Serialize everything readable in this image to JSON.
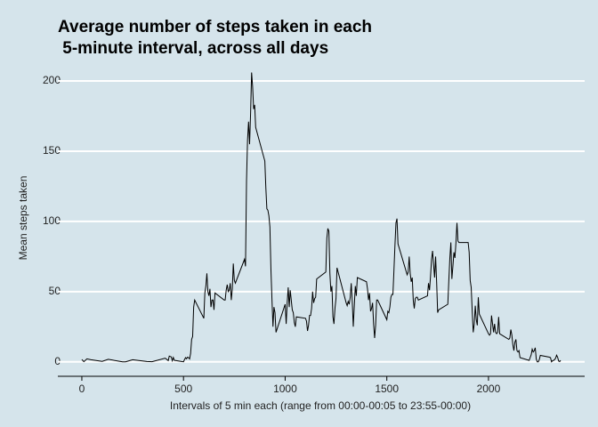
{
  "chart_data": {
    "type": "line",
    "title": [
      "Average number of steps taken in each",
      " 5-minute interval, across all days"
    ],
    "x_label": "Intervals of 5 min each (range from 00:00-00:05 to 23:55-00:00)",
    "y_label": "Mean steps taken",
    "xlim": [
      -118,
      2473
    ],
    "ylim": [
      -10.3,
      216.5
    ],
    "xticks": [
      0,
      500,
      1000,
      1500,
      2000
    ],
    "yticks": [
      0,
      50,
      100,
      150,
      200
    ],
    "grid": true,
    "color": "#000000",
    "x": [
      0,
      10,
      25,
      45,
      100,
      130,
      200,
      215,
      250,
      320,
      345,
      410,
      425,
      430,
      440,
      445,
      450,
      455,
      500,
      505,
      510,
      515,
      520,
      525,
      530,
      535,
      540,
      545,
      550,
      555,
      600,
      605,
      610,
      615,
      620,
      625,
      630,
      635,
      640,
      645,
      650,
      655,
      700,
      705,
      710,
      715,
      720,
      725,
      730,
      735,
      740,
      745,
      750,
      755,
      800,
      805,
      810,
      815,
      820,
      825,
      830,
      835,
      840,
      845,
      850,
      855,
      900,
      905,
      910,
      915,
      920,
      925,
      930,
      935,
      940,
      945,
      950,
      955,
      1000,
      1005,
      1010,
      1015,
      1020,
      1025,
      1030,
      1035,
      1040,
      1045,
      1050,
      1055,
      1100,
      1105,
      1110,
      1115,
      1120,
      1125,
      1130,
      1135,
      1140,
      1145,
      1150,
      1155,
      1200,
      1205,
      1210,
      1215,
      1220,
      1225,
      1230,
      1235,
      1240,
      1245,
      1250,
      1255,
      1300,
      1305,
      1310,
      1315,
      1320,
      1325,
      1330,
      1335,
      1340,
      1345,
      1350,
      1355,
      1400,
      1405,
      1410,
      1415,
      1420,
      1425,
      1430,
      1435,
      1440,
      1445,
      1450,
      1455,
      1500,
      1505,
      1510,
      1515,
      1520,
      1525,
      1530,
      1535,
      1540,
      1545,
      1550,
      1555,
      1600,
      1605,
      1610,
      1615,
      1620,
      1625,
      1630,
      1635,
      1640,
      1645,
      1650,
      1655,
      1700,
      1705,
      1710,
      1715,
      1720,
      1725,
      1730,
      1735,
      1740,
      1745,
      1750,
      1755,
      1800,
      1805,
      1810,
      1815,
      1820,
      1825,
      1830,
      1835,
      1840,
      1845,
      1850,
      1855,
      1900,
      1905,
      1910,
      1915,
      1920,
      1925,
      1930,
      1935,
      1940,
      1945,
      1950,
      1955,
      2000,
      2005,
      2010,
      2015,
      2020,
      2025,
      2030,
      2035,
      2040,
      2045,
      2050,
      2055,
      2100,
      2105,
      2110,
      2115,
      2120,
      2125,
      2130,
      2135,
      2140,
      2145,
      2150,
      2155,
      2200,
      2205,
      2210,
      2215,
      2220,
      2225,
      2230,
      2235,
      2240,
      2245,
      2250,
      2255,
      2300,
      2305,
      2310,
      2315,
      2320,
      2325,
      2330,
      2335,
      2340,
      2345,
      2350,
      2355
    ],
    "values": [
      1.7,
      0.1,
      2.1,
      1.5,
      0.3,
      1.8,
      0,
      0,
      1.5,
      0.2,
      0.1,
      2.6,
      0.9,
      4.1,
      3.5,
      0.8,
      3.1,
      1.1,
      0,
      1.6,
      3,
      2.2,
      3.3,
      3,
      2.1,
      6,
      16,
      18,
      39,
      44,
      31,
      49,
      54,
      63,
      50,
      47,
      52,
      39,
      44,
      44,
      37,
      49,
      44,
      44,
      51,
      55,
      50,
      51,
      56,
      44,
      52,
      70,
      58,
      56,
      73,
      68,
      129,
      158,
      171,
      155,
      177,
      206,
      196,
      180,
      183,
      167,
      143,
      124,
      109,
      108,
      104,
      96,
      66,
      45,
      25,
      39,
      35,
      21,
      41,
      27,
      42,
      53,
      39,
      51,
      44,
      37,
      35,
      28,
      25,
      32,
      31,
      29,
      22,
      26,
      33,
      33,
      38,
      50,
      42,
      45,
      46,
      59,
      64,
      88,
      95,
      93,
      63,
      50,
      54,
      32,
      27,
      38,
      45,
      67,
      42,
      40,
      43,
      41,
      46,
      56,
      43,
      25,
      40,
      54,
      47,
      60,
      57,
      52,
      44,
      49,
      36,
      38,
      42,
      27,
      17,
      26,
      44,
      44,
      30,
      36,
      35,
      39,
      46,
      48,
      48,
      65,
      83,
      99,
      102,
      84,
      62,
      64,
      75,
      63,
      57,
      60,
      44,
      38,
      45,
      46,
      46,
      44,
      47,
      56,
      51,
      61,
      73,
      79,
      69,
      60,
      75,
      57,
      35,
      37,
      41,
      58,
      74,
      85,
      59,
      68,
      78,
      74,
      85,
      99,
      86,
      85,
      85,
      78,
      58,
      53,
      36,
      21,
      27,
      40,
      30,
      26,
      46,
      34,
      20,
      19,
      20,
      33,
      27,
      21,
      27,
      21,
      20,
      21,
      32,
      20,
      16,
      17,
      23,
      19,
      12,
      8,
      14,
      16,
      8,
      7,
      8,
      3,
      1,
      3,
      5,
      9,
      7,
      8,
      10,
      2,
      0,
      0,
      1.6,
      4.6,
      3.3,
      3,
      0,
      0.8,
      1,
      1.6,
      2.6,
      4.7,
      3.3,
      0.6,
      0.2,
      1.1
    ]
  }
}
